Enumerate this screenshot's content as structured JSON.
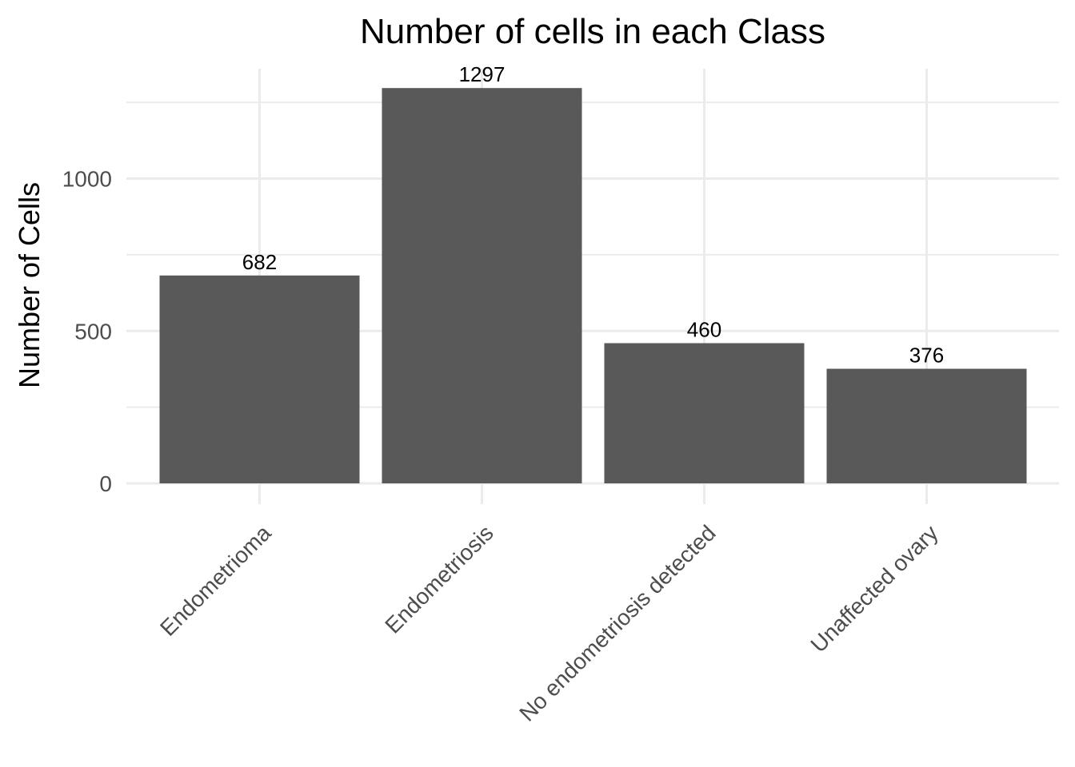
{
  "chart_data": {
    "type": "bar",
    "title": "Number of cells in each Class",
    "xlabel": "",
    "ylabel": "Number of Cells",
    "categories": [
      "Endometrioma",
      "Endometriosis",
      "No endometriosis detected",
      "Unaffected ovary"
    ],
    "values": [
      682,
      1297,
      460,
      376
    ],
    "data_labels": [
      "682",
      "1297",
      "460",
      "376"
    ],
    "y_ticks": [
      0,
      500,
      1000
    ],
    "y_tick_labels": [
      "0",
      "500",
      "1000"
    ],
    "ylim": [
      0,
      1297
    ],
    "grid": true,
    "legend": "none",
    "colors": {
      "bar": "#595959",
      "grid": "#ebebeb",
      "tick_text": "#4d4d4d",
      "text": "#000000",
      "background": "#ffffff"
    }
  }
}
